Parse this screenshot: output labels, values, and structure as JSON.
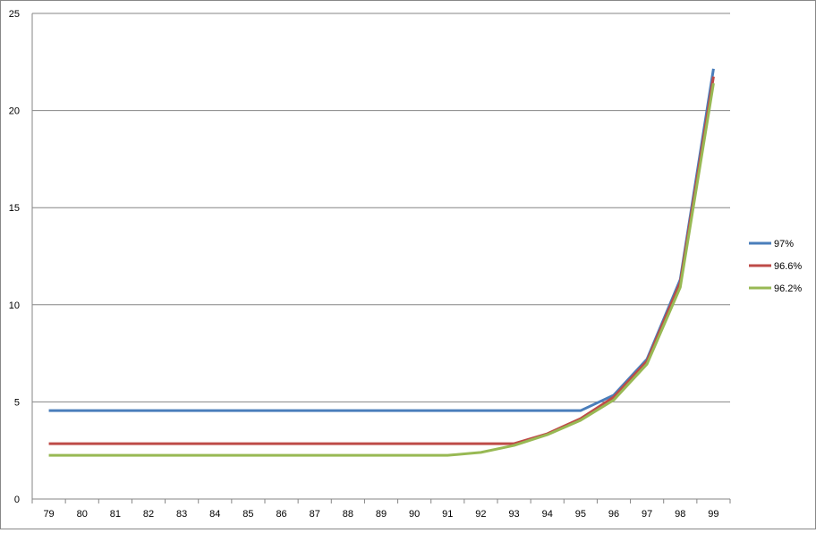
{
  "chart_data": {
    "type": "line",
    "title": "",
    "xlabel": "",
    "ylabel": "",
    "categories": [
      "79",
      "80",
      "81",
      "82",
      "83",
      "84",
      "85",
      "86",
      "87",
      "88",
      "89",
      "90",
      "91",
      "92",
      "93",
      "94",
      "95",
      "96",
      "97",
      "98",
      "99"
    ],
    "ylim": [
      0,
      25
    ],
    "yticks": [
      "0",
      "5",
      "10",
      "15",
      "20",
      "25"
    ],
    "grid": "horizontal",
    "legend_position": "right",
    "series": [
      {
        "name": "97%",
        "color": "#4a7ebb",
        "values": [
          4.55,
          4.55,
          4.55,
          4.55,
          4.55,
          4.55,
          4.55,
          4.55,
          4.55,
          4.55,
          4.55,
          4.55,
          4.55,
          4.55,
          4.55,
          4.55,
          4.55,
          5.35,
          7.2,
          11.3,
          22.15
        ]
      },
      {
        "name": "96.6%",
        "color": "#be4b48",
        "values": [
          2.85,
          2.85,
          2.85,
          2.85,
          2.85,
          2.85,
          2.85,
          2.85,
          2.85,
          2.85,
          2.85,
          2.85,
          2.85,
          2.85,
          2.85,
          3.36,
          4.14,
          5.25,
          7.1,
          11.15,
          21.75
        ]
      },
      {
        "name": "96.2%",
        "color": "#98b954",
        "values": [
          2.25,
          2.25,
          2.25,
          2.25,
          2.25,
          2.25,
          2.25,
          2.25,
          2.25,
          2.25,
          2.25,
          2.25,
          2.25,
          2.4,
          2.76,
          3.31,
          4.05,
          5.1,
          6.95,
          10.9,
          21.4
        ]
      }
    ]
  }
}
